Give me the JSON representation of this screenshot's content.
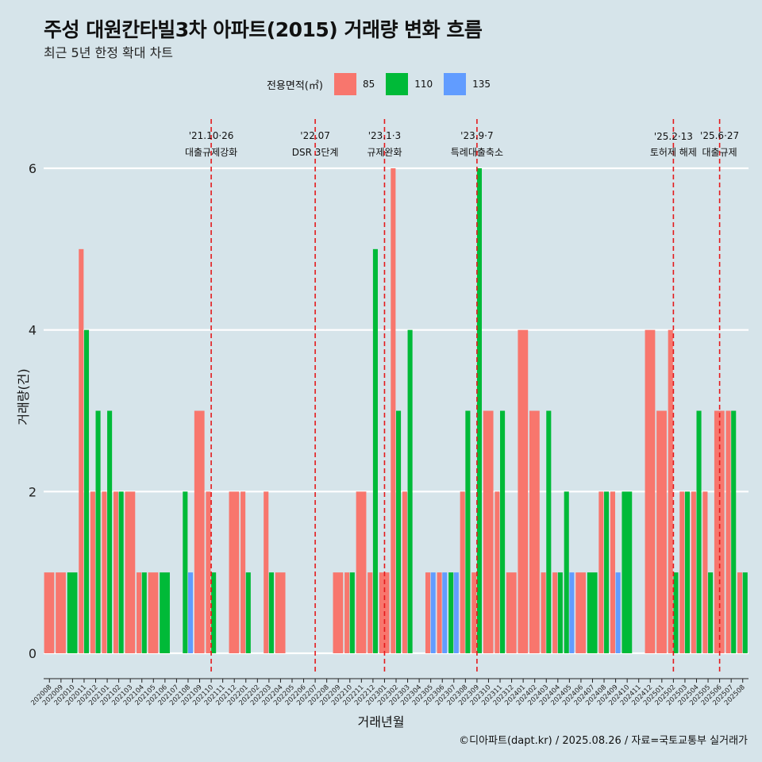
{
  "title": "주성 대원칸타빌3차 아파트(2015) 거래량 변화 흐름",
  "subtitle": "최근 5년 한정 확대 차트",
  "legend": {
    "title": "전용면적(㎡)",
    "items": [
      {
        "label": "85",
        "color": "#f8766d"
      },
      {
        "label": "110",
        "color": "#00ba38"
      },
      {
        "label": "135",
        "color": "#619cff"
      }
    ]
  },
  "caption": "©디아파트(dapt.kr) / 2025.08.26 / 자료=국토교통부 실거래가",
  "chart_data": {
    "type": "bar",
    "xlabel": "거래년월",
    "ylabel": "거래량(건)",
    "ylim": [
      0,
      6.3
    ],
    "yticks": [
      0,
      2,
      4,
      6
    ],
    "grid": true,
    "legend_position": "top",
    "categories": [
      "202008",
      "202009",
      "202010",
      "202011",
      "202012",
      "202101",
      "202102",
      "202103",
      "202104",
      "202105",
      "202106",
      "202107",
      "202108",
      "202109",
      "202110",
      "202111",
      "202112",
      "202201",
      "202202",
      "202203",
      "202204",
      "202205",
      "202206",
      "202207",
      "202208",
      "202209",
      "202210",
      "202211",
      "202212",
      "202301",
      "202302",
      "202303",
      "202304",
      "202305",
      "202306",
      "202307",
      "202308",
      "202309",
      "202310",
      "202311",
      "202312",
      "202401",
      "202402",
      "202403",
      "202404",
      "202405",
      "202406",
      "202407",
      "202408",
      "202409",
      "202410",
      "202411",
      "202412",
      "202501",
      "202502",
      "202503",
      "202504",
      "202505",
      "202506",
      "202507",
      "202508"
    ],
    "series": [
      {
        "name": "85",
        "color": "#f8766d",
        "values": [
          1,
          1,
          0,
          5,
          2,
          2,
          2,
          2,
          1,
          1,
          0,
          0,
          0,
          3,
          2,
          0,
          2,
          2,
          0,
          2,
          1,
          0,
          0,
          0,
          0,
          1,
          1,
          2,
          1,
          1,
          6,
          2,
          0,
          1,
          1,
          0,
          2,
          1,
          3,
          2,
          1,
          4,
          3,
          1,
          1,
          0,
          1,
          0,
          2,
          2,
          0,
          0,
          4,
          3,
          4,
          2,
          2,
          2,
          3,
          3,
          1
        ]
      },
      {
        "name": "110",
        "color": "#00ba38",
        "values": [
          0,
          0,
          1,
          4,
          3,
          3,
          2,
          0,
          1,
          0,
          1,
          0,
          2,
          0,
          1,
          0,
          0,
          1,
          0,
          1,
          0,
          0,
          0,
          0,
          0,
          0,
          1,
          0,
          5,
          0,
          3,
          4,
          0,
          0,
          0,
          1,
          3,
          6,
          0,
          3,
          0,
          0,
          0,
          3,
          1,
          2,
          0,
          1,
          2,
          0,
          2,
          0,
          0,
          0,
          1,
          2,
          3,
          1,
          0,
          3,
          1
        ]
      },
      {
        "name": "135",
        "color": "#619cff",
        "values": [
          0,
          0,
          0,
          0,
          0,
          0,
          0,
          0,
          0,
          0,
          0,
          0,
          1,
          0,
          0,
          0,
          0,
          0,
          0,
          0,
          0,
          0,
          0,
          0,
          0,
          0,
          0,
          0,
          0,
          0,
          0,
          0,
          0,
          1,
          1,
          1,
          0,
          0,
          0,
          0,
          0,
          0,
          0,
          0,
          0,
          1,
          0,
          0,
          0,
          1,
          0,
          0,
          0,
          0,
          0,
          0,
          0,
          0,
          0,
          0,
          0
        ]
      }
    ],
    "annotations": [
      {
        "category": "202110",
        "date": "'21.10·26",
        "text": "대출규제강화"
      },
      {
        "category": "202207",
        "date": "'22.07",
        "text": "DSR 3단계"
      },
      {
        "category": "202301",
        "date": "'23.1·3",
        "text": "규제완화"
      },
      {
        "category": "202309",
        "date": "'23.9·7",
        "text": "특례대출축소"
      },
      {
        "category": "202502",
        "date": "'25.2·13",
        "text": "토허제 해제"
      },
      {
        "category": "202506",
        "date": "'25.6·27",
        "text": "대출규제"
      }
    ]
  }
}
